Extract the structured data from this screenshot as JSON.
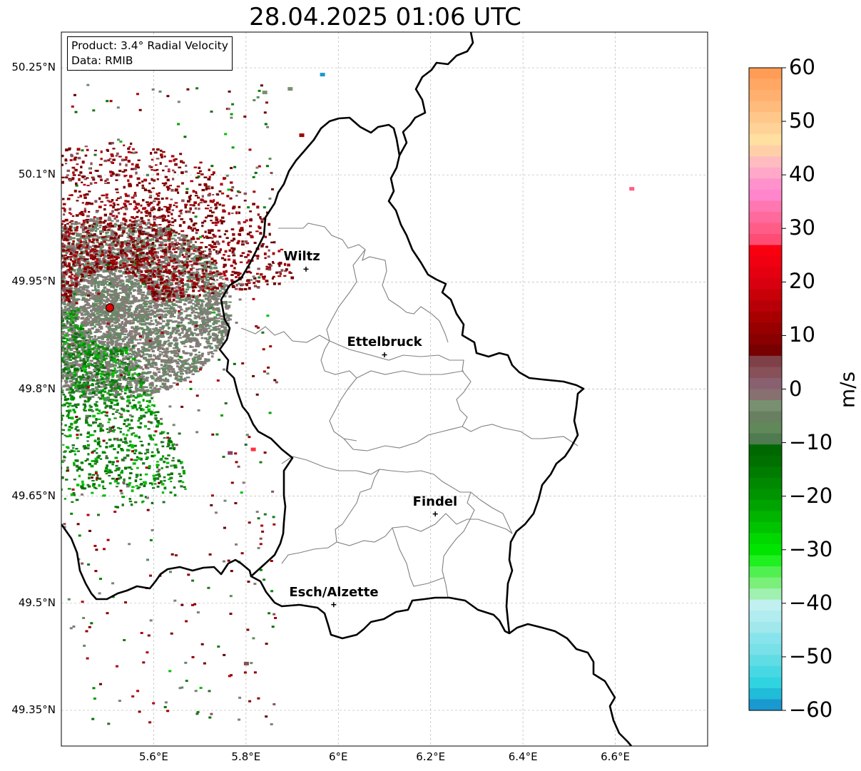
{
  "title": "28.04.2025 01:06 UTC",
  "info": {
    "product": "Product: 3.4° Radial Velocity",
    "data": "Data: RMIB"
  },
  "lat_ticks": [
    {
      "value": 50.25,
      "label": "50.25°N"
    },
    {
      "value": 50.1,
      "label": "50.1°N"
    },
    {
      "value": 49.95,
      "label": "49.95°N"
    },
    {
      "value": 49.8,
      "label": "49.8°N"
    },
    {
      "value": 49.65,
      "label": "49.65°N"
    },
    {
      "value": 49.5,
      "label": "49.5°N"
    },
    {
      "value": 49.35,
      "label": "49.35°N"
    }
  ],
  "lon_ticks": [
    {
      "value": 5.6,
      "label": "5.6°E"
    },
    {
      "value": 5.8,
      "label": "5.8°E"
    },
    {
      "value": 6.0,
      "label": "6°E"
    },
    {
      "value": 6.2,
      "label": "6.2°E"
    },
    {
      "value": 6.4,
      "label": "6.4°E"
    },
    {
      "value": 6.6,
      "label": "6.6°E"
    }
  ],
  "map_extent": {
    "lon": [
      5.4,
      6.8
    ],
    "lat": [
      49.3,
      50.3
    ]
  },
  "cities": [
    {
      "name": "Wiltz",
      "lon": 5.93,
      "lat": 49.968
    },
    {
      "name": "Ettelbruck",
      "lon": 6.1,
      "lat": 49.848
    },
    {
      "name": "Findel",
      "lon": 6.21,
      "lat": 49.625
    },
    {
      "name": "Esch/Alzette",
      "lon": 5.99,
      "lat": 49.498
    }
  ],
  "radar_site": {
    "lon": 5.505,
    "lat": 49.914,
    "color": "#e00000"
  },
  "colorbar": {
    "unit": "m/s",
    "min": -60,
    "max": 60,
    "ticks": [
      "60",
      "50",
      "40",
      "30",
      "20",
      "10",
      "0",
      "−10",
      "−20",
      "−30",
      "−40",
      "−50",
      "−60"
    ],
    "colors_top_to_bottom": [
      "#ff9c55",
      "#ffa763",
      "#ffb06f",
      "#ffbb7c",
      "#ffc88a",
      "#ffd397",
      "#ffe0a0",
      "#ffd0a8",
      "#ffbcc0",
      "#ffa8c8",
      "#ff92cc",
      "#ff86cc",
      "#ff76b0",
      "#ff6a9c",
      "#ff5c88",
      "#ff4c74",
      "#f80010",
      "#f00010",
      "#e40010",
      "#d80010",
      "#c80008",
      "#b80008",
      "#a80000",
      "#980000",
      "#880000",
      "#780000",
      "#804048",
      "#885058",
      "#886070",
      "#887070",
      "#789070",
      "#688060",
      "#608858",
      "#507a50",
      "#006800",
      "#007000",
      "#007c00",
      "#008800",
      "#009400",
      "#00a400",
      "#00b400",
      "#00c400",
      "#00d800",
      "#00e400",
      "#20f020",
      "#50f050",
      "#7af07a",
      "#a0f0b0",
      "#c0f0f0",
      "#b0ecf0",
      "#a0e8ec",
      "#88e4ec",
      "#78e0e8",
      "#60dce4",
      "#48d8e4",
      "#30d4e0",
      "#20bcd8",
      "#1a98d0"
    ]
  },
  "colors": {
    "border": "#000000",
    "canton": "#808080",
    "grid": "#b8b8b8",
    "approach": "#1a7a1a",
    "recede": "#8a0000",
    "zero_green": "#5f8a60",
    "zero_grey": "#887878"
  }
}
